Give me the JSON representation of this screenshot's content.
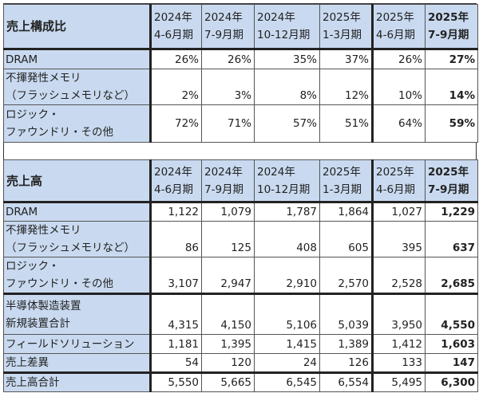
{
  "periods": [
    "2024年|4-6月期",
    "2024年|7-9月期",
    "2024年|10-12月期",
    "2025年|1-3月期",
    "2025年|4-6月期",
    "2025年|7-9月期"
  ],
  "period_year": [
    "2024年",
    "2024年",
    "2024年",
    "2025年",
    "2025年",
    "2025年"
  ],
  "period_q": [
    "4-6月期",
    "7-9月期",
    "10-12月期",
    "1-3月期",
    "4-6月期",
    "7-9月期"
  ],
  "composition": {
    "title": "売上構成比",
    "rows": [
      {
        "label": [
          "DRAM"
        ],
        "values": [
          "26%",
          "26%",
          "35%",
          "37%",
          "26%",
          "27%"
        ]
      },
      {
        "label": [
          "不揮発性メモリ",
          "（フラッシュメモリなど）"
        ],
        "values": [
          "2%",
          "3%",
          "8%",
          "12%",
          "10%",
          "14%"
        ]
      },
      {
        "label": [
          "ロジック・",
          "ファウンドリ・その他"
        ],
        "values": [
          "72%",
          "71%",
          "57%",
          "51%",
          "64%",
          "59%"
        ]
      }
    ]
  },
  "sales": {
    "title": "売上高",
    "rows": [
      {
        "label": [
          "DRAM"
        ],
        "values": [
          "1,122",
          "1,079",
          "1,787",
          "1,864",
          "1,027",
          "1,229"
        ]
      },
      {
        "label": [
          "不揮発性メモリ",
          "（フラッシュメモリなど）"
        ],
        "values": [
          "86",
          "125",
          "408",
          "605",
          "395",
          "637"
        ]
      },
      {
        "label": [
          "ロジック・",
          "ファウンドリ・その他"
        ],
        "values": [
          "3,107",
          "2,947",
          "2,910",
          "2,570",
          "2,528",
          "2,685"
        ]
      },
      {
        "label": [
          "半導体製造装置",
          "新規装置合計"
        ],
        "values": [
          "4,315",
          "4,150",
          "5,106",
          "5,039",
          "3,950",
          "4,550"
        ]
      },
      {
        "label": [
          "フィールドソリューション"
        ],
        "values": [
          "1,181",
          "1,395",
          "1,415",
          "1,389",
          "1,412",
          "1,603"
        ]
      },
      {
        "label": [
          "売上差異"
        ],
        "values": [
          "54",
          "120",
          "24",
          "126",
          "133",
          "147"
        ]
      },
      {
        "label": [
          "売上高合計"
        ],
        "values": [
          "5,550",
          "5,665",
          "6,545",
          "6,554",
          "5,495",
          "6,300"
        ]
      }
    ]
  },
  "colors": {
    "header_bg": "#c9daf0",
    "cell_bg": "#ffffff"
  }
}
